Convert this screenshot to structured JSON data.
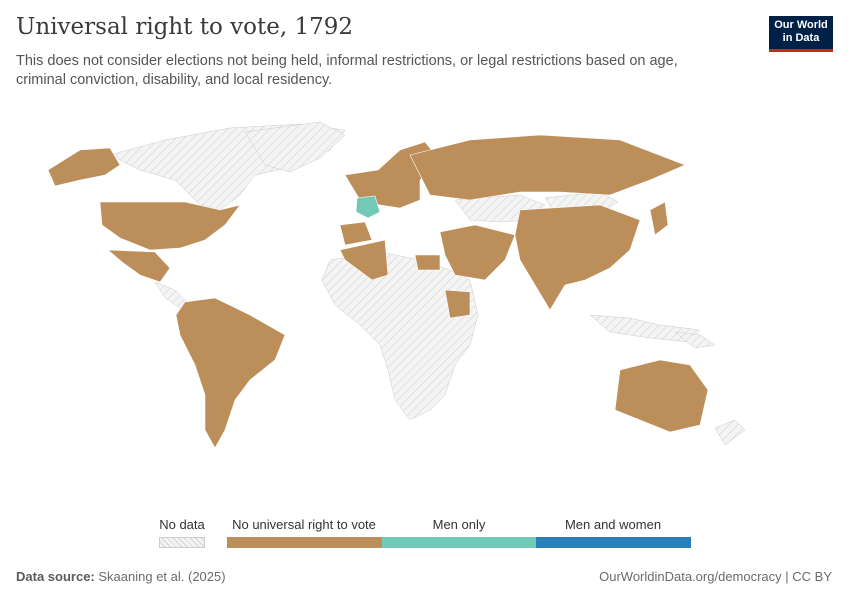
{
  "title": "Universal right to vote, 1792",
  "subtitle": "This does not consider elections not being held, informal restrictions, or legal restrictions based on age, criminal conviction, disability, and local residency.",
  "logo": {
    "line1": "Our World",
    "line2": "in Data"
  },
  "legend": {
    "no_data": "No data",
    "categories": [
      {
        "label": "No universal right to vote",
        "color": "#bc8e5a"
      },
      {
        "label": "Men only",
        "color": "#73c9b8"
      },
      {
        "label": "Men and women",
        "color": "#2a7fb8"
      }
    ]
  },
  "colors": {
    "no_data_fill": "#f1f1f1",
    "hatch": "#cfcfcf",
    "border": "#ffffff"
  },
  "footer": {
    "source_label": "Data source:",
    "source": "Skaaning et al. (2025)",
    "url": "OurWorldinData.org/democracy | CC BY"
  }
}
